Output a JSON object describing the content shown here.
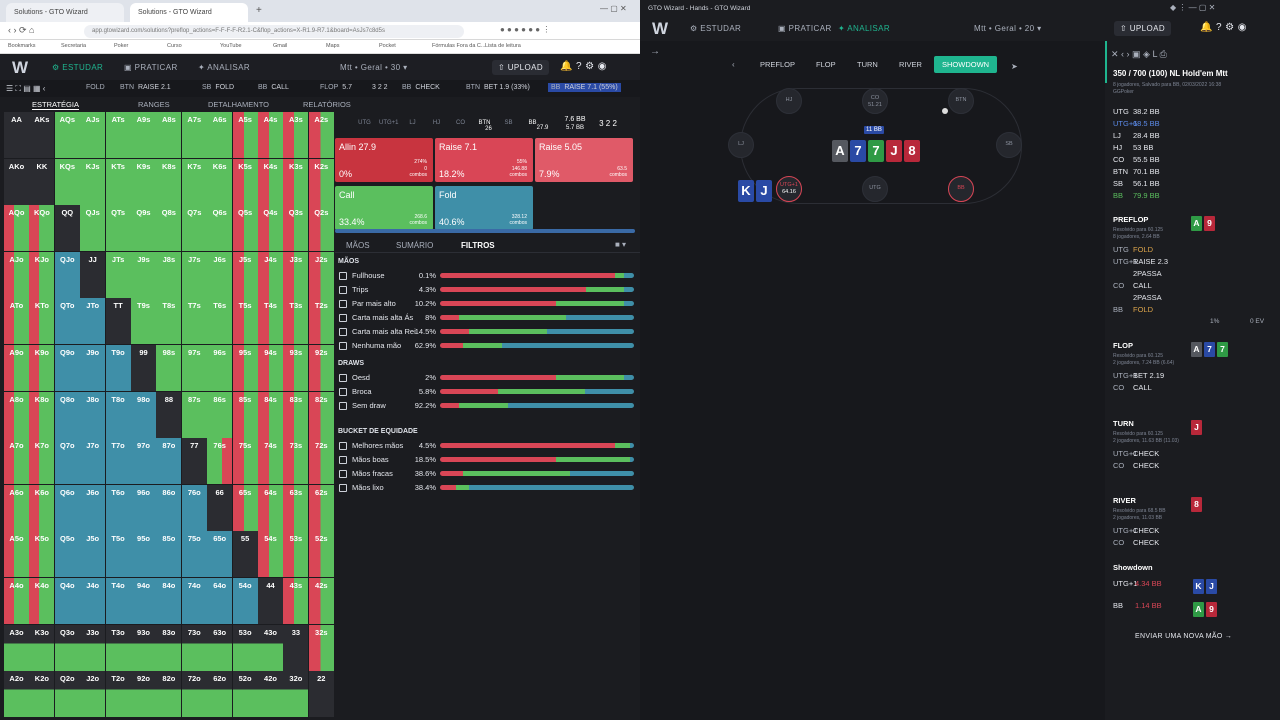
{
  "colors": {
    "raise": "#d94656",
    "call": "#5bbf5e",
    "fold": "#3f8fa8",
    "accent": "#1fb58f",
    "bg": "#1b1c20"
  },
  "browser": {
    "tabs": [
      "Solutions - GTO Wizard",
      "Solutions - GTO Wizard"
    ],
    "url": "app.gtowizard.com/solutions?preflop_actions=F-F-F-F-R2.1-C&flop_actions=X-R1.9-R7.1&board=AsJs7c8d5s",
    "bookmarks": [
      "Bookmarks",
      "Secretaria",
      "Poker",
      "Curso",
      "YouTube",
      "Gmail",
      "Maps",
      "Pocket",
      "Fórmulas Fora da C...",
      "Lista de leitura"
    ]
  },
  "gto_header": {
    "logo": "W",
    "nav": [
      "ESTUDAR",
      "PRATICAR",
      "ANALISAR"
    ],
    "selector": "Mtt • Geral • 30",
    "upload": "UPLOAD",
    "badge": "4"
  },
  "actions": [
    {
      "pos": "FOLD",
      "act": ""
    },
    {
      "pos": "BTN",
      "act": "RAISE 2.1"
    },
    {
      "pos": "SB",
      "act": "FOLD"
    },
    {
      "pos": "BB",
      "act": "CALL"
    },
    {
      "pos": "FLOP",
      "act": "5.7"
    },
    {
      "pos": "",
      "act": "3 2 2"
    },
    {
      "pos": "BB",
      "act": "CHECK"
    },
    {
      "pos": "BTN",
      "act": "BET 1.9 (33%)"
    },
    {
      "pos": "BB",
      "act": "RAISE 7.1 (55%)"
    }
  ],
  "subtabs": [
    "ESTRATÉGIA",
    "RANGES",
    "DETALHAMENTO",
    "RELATÓRIOS"
  ],
  "matrix": [
    [
      "AA",
      "AKs",
      "AQs",
      "AJs",
      "ATs",
      "A9s",
      "A8s",
      "A7s",
      "A6s",
      "A5s",
      "A4s",
      "A3s",
      "A2s"
    ],
    [
      "AKo",
      "KK",
      "KQs",
      "KJs",
      "KTs",
      "K9s",
      "K8s",
      "K7s",
      "K6s",
      "K5s",
      "K4s",
      "K3s",
      "K2s"
    ],
    [
      "AQo",
      "KQo",
      "QQ",
      "QJs",
      "QTs",
      "Q9s",
      "Q8s",
      "Q7s",
      "Q6s",
      "Q5s",
      "Q4s",
      "Q3s",
      "Q2s"
    ],
    [
      "AJo",
      "KJo",
      "QJo",
      "JJ",
      "JTs",
      "J9s",
      "J8s",
      "J7s",
      "J6s",
      "J5s",
      "J4s",
      "J3s",
      "J2s"
    ],
    [
      "ATo",
      "KTo",
      "QTo",
      "JTo",
      "TT",
      "T9s",
      "T8s",
      "T7s",
      "T6s",
      "T5s",
      "T4s",
      "T3s",
      "T2s"
    ],
    [
      "A9o",
      "K9o",
      "Q9o",
      "J9o",
      "T9o",
      "99",
      "98s",
      "97s",
      "96s",
      "95s",
      "94s",
      "93s",
      "92s"
    ],
    [
      "A8o",
      "K8o",
      "Q8o",
      "J8o",
      "T8o",
      "98o",
      "88",
      "87s",
      "86s",
      "85s",
      "84s",
      "83s",
      "82s"
    ],
    [
      "A7o",
      "K7o",
      "Q7o",
      "J7o",
      "T7o",
      "97o",
      "87o",
      "77",
      "76s",
      "75s",
      "74s",
      "73s",
      "72s"
    ],
    [
      "A6o",
      "K6o",
      "Q6o",
      "J6o",
      "T6o",
      "96o",
      "86o",
      "76o",
      "66",
      "65s",
      "64s",
      "63s",
      "62s"
    ],
    [
      "A5o",
      "K5o",
      "Q5o",
      "J5o",
      "T5o",
      "95o",
      "85o",
      "75o",
      "65o",
      "55",
      "54s",
      "53s",
      "52s"
    ],
    [
      "A4o",
      "K4o",
      "Q4o",
      "J4o",
      "T4o",
      "94o",
      "84o",
      "74o",
      "64o",
      "54o",
      "44",
      "43s",
      "42s"
    ],
    [
      "A3o",
      "K3o",
      "Q3o",
      "J3o",
      "T3o",
      "93o",
      "83o",
      "73o",
      "63o",
      "53o",
      "43o",
      "33",
      "32s"
    ],
    [
      "A2o",
      "K2o",
      "Q2o",
      "J2o",
      "T2o",
      "92o",
      "82o",
      "72o",
      "62o",
      "52o",
      "42o",
      "32o",
      "22"
    ]
  ],
  "positions": [
    "UTG",
    "UTG+1",
    "LJ",
    "HJ",
    "CO",
    "BTN",
    "SB",
    "BB"
  ],
  "pos_stacks": {
    "btn": "26",
    "bb": "27.9",
    "pot": "7.6 BB",
    "pot2": "5.7 BB",
    "board": "3 2 2"
  },
  "strategy": [
    {
      "name": "Allin 27.9",
      "pct": "0%",
      "s1": "274%",
      "s2": "0",
      "s3": "combos"
    },
    {
      "name": "Raise 7.1",
      "pct": "18.2%",
      "s1": "55%",
      "s2": "146.88",
      "s3": "combos"
    },
    {
      "name": "Raise 5.05",
      "pct": "7.9%",
      "s1": "",
      "s2": "63.5",
      "s3": "combos"
    },
    {
      "name": "Call",
      "pct": "33.4%",
      "s1": "",
      "s2": "268.6",
      "s3": "combos"
    },
    {
      "name": "Fold",
      "pct": "40.6%",
      "s1": "",
      "s2": "328.12",
      "s3": "combos"
    }
  ],
  "filter_tabs": [
    "MÃOS",
    "SUMÁRIO",
    "FILTROS"
  ],
  "filters": {
    "maos_title": "MÃOS",
    "maos": [
      {
        "label": "Fullhouse",
        "pct": "0.1%",
        "r": 0.9,
        "c": 0.05,
        "f": 0.05
      },
      {
        "label": "Trips",
        "pct": "4.3%",
        "r": 0.75,
        "c": 0.2,
        "f": 0.05
      },
      {
        "label": "Par mais alto",
        "pct": "10.2%",
        "r": 0.6,
        "c": 0.35,
        "f": 0.05
      },
      {
        "label": "Carta mais alta Ás",
        "pct": "8%",
        "r": 0.1,
        "c": 0.55,
        "f": 0.35
      },
      {
        "label": "Carta mais alta Rei",
        "pct": "14.5%",
        "r": 0.15,
        "c": 0.4,
        "f": 0.45
      },
      {
        "label": "Nenhuma mão",
        "pct": "62.9%",
        "r": 0.12,
        "c": 0.2,
        "f": 0.68
      }
    ],
    "draws_title": "DRAWS",
    "draws": [
      {
        "label": "Oesd",
        "pct": "2%",
        "r": 0.6,
        "c": 0.35,
        "f": 0.05
      },
      {
        "label": "Broca",
        "pct": "5.8%",
        "r": 0.3,
        "c": 0.45,
        "f": 0.25
      },
      {
        "label": "Sem draw",
        "pct": "92.2%",
        "r": 0.1,
        "c": 0.25,
        "f": 0.65
      }
    ],
    "bucket_title": "BUCKET DE EQUIDADE",
    "bucket": [
      {
        "label": "Melhores mãos",
        "pct": "4.5%",
        "r": 0.9,
        "c": 0.08,
        "f": 0.02
      },
      {
        "label": "Mãos boas",
        "pct": "18.5%",
        "r": 0.6,
        "c": 0.38,
        "f": 0.02
      },
      {
        "label": "Mãos fracas",
        "pct": "38.6%",
        "r": 0.12,
        "c": 0.55,
        "f": 0.33
      },
      {
        "label": "Mãos lixo",
        "pct": "38.4%",
        "r": 0.08,
        "c": 0.07,
        "f": 0.85
      }
    ]
  },
  "right": {
    "title": "GTO Wizard - Hands - GTO Wizard",
    "nav": [
      "ESTUDAR",
      "PRATICAR",
      "ANALISAR"
    ],
    "selector": "Mtt • Geral • 20",
    "upload": "UPLOAD",
    "streets": [
      "PREFLOP",
      "FLOP",
      "TURN",
      "RIVER",
      "SHOWDOWN"
    ],
    "seats": {
      "hj": "HJ",
      "co": "CO",
      "co_stack": "51.21",
      "btn": "BTN",
      "lj": "LJ",
      "sb": "SB",
      "utg": "UTG",
      "bb": "BB",
      "hero": "UTG+1",
      "hero_stack": "64.16"
    },
    "pot": "11 BB",
    "board": [
      "A",
      "7",
      "7",
      "J",
      "8"
    ],
    "hero_cards": [
      "K",
      "J"
    ],
    "history": {
      "title": "350 / 700 (100) NL Hold'em Mtt",
      "sub": "8 jogadores, Salvado para BB, 02/03/2022 16:38",
      "site": "GGPoker",
      "players": [
        [
          "UTG",
          "38.2 BB"
        ],
        [
          "UTG+1",
          "68.5 BB"
        ],
        [
          "LJ",
          "28.4 BB"
        ],
        [
          "HJ",
          "53 BB"
        ],
        [
          "CO",
          "55.5 BB"
        ],
        [
          "BTN",
          "70.1 BB"
        ],
        [
          "SB",
          "56.1 BB"
        ],
        [
          "BB",
          "79.9 BB"
        ]
      ],
      "preflop": "PREFLOP",
      "preflop_sub": "Resolvido para 60.125",
      "preflop_sub2": "8 jogadores, 2.64 BB",
      "pre_actions": [
        [
          "UTG",
          "FOLD"
        ],
        [
          "UTG+1",
          "RAISE 2.3"
        ],
        [
          "",
          "2PASSA"
        ],
        [
          "CO",
          "CALL"
        ],
        [
          "",
          "2PASSA"
        ],
        [
          "BB",
          "FOLD"
        ]
      ],
      "bb_fold_pct": "1%",
      "bb_fold_ev": "0 EV",
      "flop": "FLOP",
      "flop_sub": "Resolvido para 60.125",
      "flop_sub2": "2 jogadores, 7.24 BB (6.64)",
      "flop_actions": [
        [
          "UTG+1",
          "BET 2.19"
        ],
        [
          "CO",
          "CALL"
        ]
      ],
      "turn": "TURN",
      "turn_sub": "Resolvido para 60.125",
      "turn_sub2": "2 jogadores, 11.63 BB (11.03)",
      "turn_actions": [
        [
          "UTG+1",
          "CHECK"
        ],
        [
          "CO",
          "CHECK"
        ]
      ],
      "river": "RIVER",
      "river_sub": "Resolvido para 68.5 BB",
      "river_sub2": "2 jogadores, 11.03 BB",
      "river_actions": [
        [
          "UTG+1",
          "CHECK"
        ],
        [
          "CO",
          "CHECK"
        ]
      ],
      "showdown": "Showdown",
      "sd": [
        [
          "UTG+1",
          "4.34 BB"
        ],
        [
          "BB",
          "1.14 BB"
        ]
      ],
      "next": "ENVIAR UMA NOVA MÃO"
    }
  }
}
